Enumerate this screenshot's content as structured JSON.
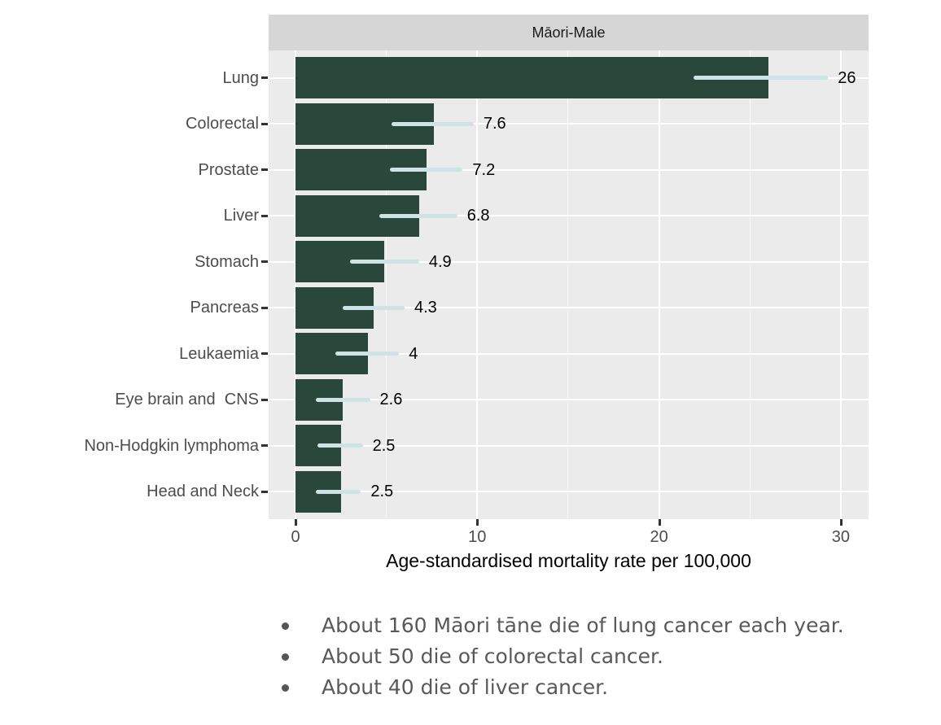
{
  "chart_data": {
    "type": "bar",
    "orientation": "horizontal",
    "title": "Māori-Male",
    "categories": [
      "Lung",
      "Colorectal",
      "Prostate",
      "Liver",
      "Stomach",
      "Pancreas",
      "Leukaemia",
      "Eye brain and  CNS",
      "Non-Hodgkin lymphoma",
      "Head and Neck"
    ],
    "values": [
      26,
      7.6,
      7.2,
      6.8,
      4.9,
      4.3,
      4,
      2.6,
      2.5,
      2.5
    ],
    "value_labels": [
      "26",
      "7.6",
      "7.2",
      "6.8",
      "4.9",
      "4.3",
      "4",
      "2.6",
      "2.5",
      "2.5"
    ],
    "error_low": [
      21.9,
      5.3,
      5.2,
      4.6,
      3.0,
      2.6,
      2.2,
      1.1,
      1.2,
      1.1
    ],
    "error_high": [
      29.3,
      9.8,
      9.2,
      8.9,
      6.8,
      6.0,
      5.7,
      4.1,
      3.7,
      3.6
    ],
    "xlabel": "Age-standardised mortality rate per 100,000",
    "x_ticks": [
      0,
      10,
      20,
      30
    ],
    "x_tick_labels": [
      "0",
      "10",
      "20",
      "30"
    ],
    "xlim": [
      0,
      30
    ],
    "grid": true,
    "legend": "none",
    "colors": {
      "bar": "#2a473b",
      "error_bar": "#cde3e4",
      "panel_bg": "#ebebeb",
      "strip_bg": "#d6d6d6",
      "axis_text": "#4d4d4d",
      "tick_mark": "#333333",
      "note_text": "#595959"
    }
  },
  "notes": {
    "items": [
      "About 160 Māori tāne die of lung cancer each year.",
      "About 50 die of colorectal cancer.",
      "About 40 die of liver cancer."
    ]
  }
}
